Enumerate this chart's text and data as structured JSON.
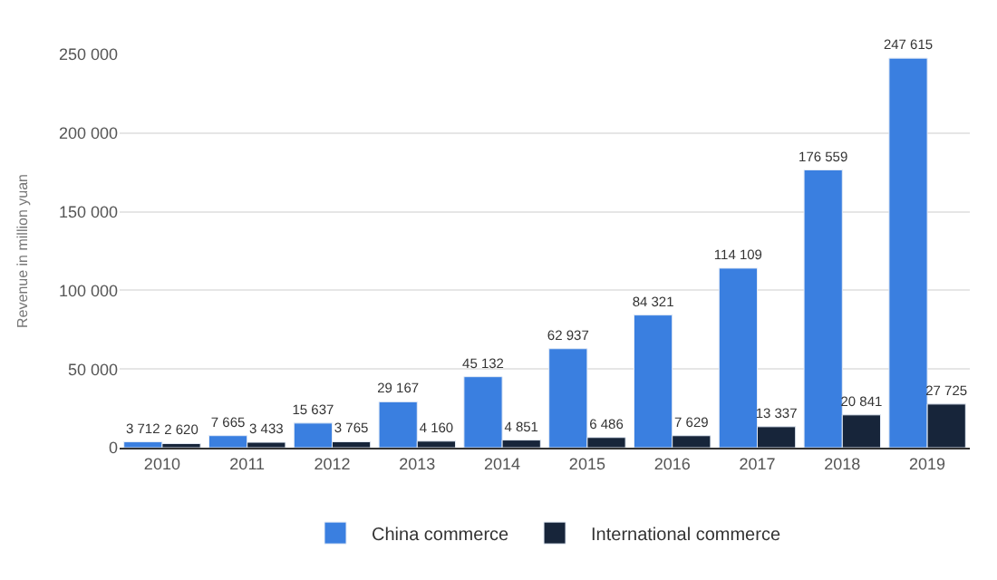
{
  "chart_data": {
    "type": "bar",
    "ylabel": "Revenue in million yuan",
    "categories": [
      "2010",
      "2011",
      "2012",
      "2013",
      "2014",
      "2015",
      "2016",
      "2017",
      "2018",
      "2019"
    ],
    "series": [
      {
        "name": "China commerce",
        "color": "#3a7fe0",
        "values": [
          3712,
          7665,
          15637,
          29167,
          45132,
          62937,
          84321,
          114109,
          176559,
          247615
        ],
        "value_labels": [
          "3 712",
          "7 665",
          "15 637",
          "29 167",
          "45 132",
          "62 937",
          "84 321",
          "114 109",
          "176 559",
          "247 615"
        ]
      },
      {
        "name": "International commerce",
        "color": "#17253a",
        "values": [
          2620,
          3433,
          3765,
          4160,
          4851,
          6486,
          7629,
          13337,
          20841,
          27725
        ],
        "value_labels": [
          "2 620",
          "3 433",
          "3 765",
          "4 160",
          "4 851",
          "6 486",
          "7 629",
          "13 337",
          "20 841",
          "27 725"
        ]
      }
    ],
    "ylim": [
      0,
      250000
    ],
    "yticks": [
      {
        "value": 0,
        "label": "0"
      },
      {
        "value": 50000,
        "label": "50 000"
      },
      {
        "value": 100000,
        "label": "100 000"
      },
      {
        "value": 150000,
        "label": "150 000"
      },
      {
        "value": 200000,
        "label": "200 000"
      },
      {
        "value": 250000,
        "label": "250 000"
      }
    ],
    "grid": "y",
    "legend": "bottom"
  }
}
